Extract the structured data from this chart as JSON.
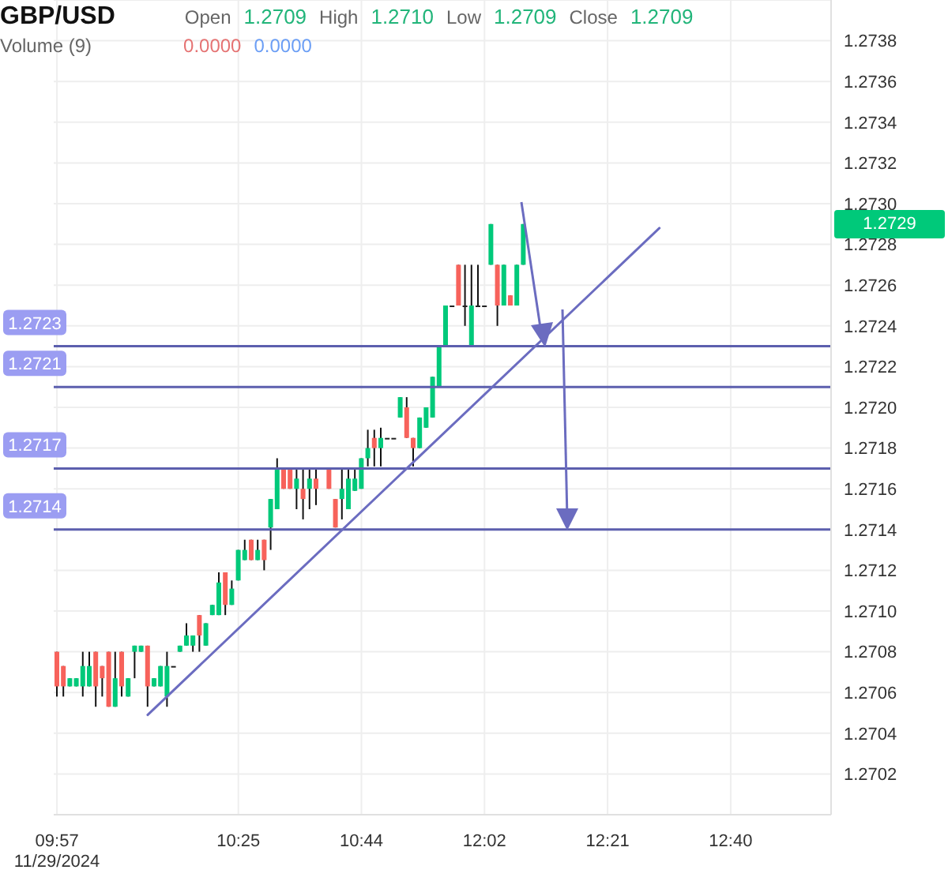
{
  "chart_data": {
    "type": "candlestick",
    "title": "GBP/USD",
    "annotations": [
      "Open",
      "1.2709",
      "High",
      "1.2710",
      "Low",
      "1.2709",
      "Close",
      "1.2709",
      "Volume (9)",
      "0.0000",
      "0.0000",
      "1.2729"
    ],
    "categories": [
      "09:57\n11/29/2024",
      null,
      null,
      null,
      null,
      null,
      null,
      null,
      null,
      null,
      null,
      null,
      null,
      null,
      null,
      null,
      null,
      null,
      null,
      null,
      null,
      null,
      null,
      null,
      null,
      null,
      null,
      null,
      "10:25",
      null,
      null,
      null,
      null,
      null,
      null,
      null,
      null,
      null,
      null,
      null,
      null,
      null,
      null,
      null,
      null,
      null,
      null,
      "10:44",
      null,
      null,
      null,
      null,
      null,
      null,
      null,
      null,
      null,
      null,
      null,
      null,
      null,
      null,
      null,
      null,
      null,
      null,
      "12:02",
      null,
      null,
      null,
      null,
      null,
      null,
      null,
      null,
      null,
      null,
      null,
      null,
      null,
      null,
      null,
      null,
      null,
      null,
      "12:21",
      null,
      null,
      null,
      null,
      null,
      null,
      null,
      null,
      null,
      null,
      null,
      null,
      null,
      null,
      null,
      null,
      null,
      null,
      "12:40",
      null,
      null,
      null,
      null,
      null,
      null,
      null,
      null,
      null,
      null,
      null,
      null,
      null,
      null,
      null
    ],
    "ohlc": [
      [
        1.2708,
        1.2708,
        1.27058,
        1.27063
      ],
      [
        1.27073,
        1.27073,
        1.27058,
        1.27063
      ],
      [
        1.27063,
        1.27067,
        1.27063,
        1.27067
      ],
      [
        1.27063,
        1.27067,
        1.27063,
        1.27067
      ],
      [
        1.27063,
        1.2708,
        1.27058,
        1.27073
      ],
      [
        1.27063,
        1.2708,
        1.27063,
        1.27073
      ],
      [
        1.2708,
        1.2708,
        1.27053,
        1.27063
      ],
      [
        1.27073,
        1.27073,
        1.27058,
        1.27067
      ],
      [
        1.2708,
        1.2708,
        1.27053,
        1.27053
      ],
      [
        1.27053,
        1.2708,
        1.27053,
        1.27067
      ],
      [
        1.2708,
        1.2708,
        1.27058,
        1.27063
      ],
      [
        1.27058,
        1.27067,
        1.27058,
        1.27067
      ],
      [
        1.2708,
        1.27083,
        1.27067,
        1.27083
      ],
      [
        1.2708,
        1.27083,
        1.2708,
        1.27083
      ],
      [
        1.27083,
        1.27083,
        1.27053,
        1.27063
      ],
      [
        1.27063,
        1.27067,
        1.27063,
        1.27067
      ],
      [
        1.27063,
        1.27073,
        1.27063,
        1.27073
      ],
      [
        1.27058,
        1.2708,
        1.27053,
        1.27073
      ],
      [
        1.27073,
        1.27073,
        1.27073,
        1.27073
      ],
      [
        1.2708,
        1.27083,
        1.2708,
        1.27083
      ],
      [
        1.27083,
        1.27094,
        1.27083,
        1.27088
      ],
      [
        1.27083,
        1.27088,
        1.2708,
        1.27088
      ],
      [
        1.27098,
        1.27098,
        1.2708,
        1.27088
      ],
      [
        1.27083,
        1.27094,
        1.27083,
        1.27094
      ],
      [
        1.27098,
        1.27103,
        1.27098,
        1.27103
      ],
      [
        1.27098,
        1.27119,
        1.27098,
        1.27114
      ],
      [
        1.27119,
        1.27119,
        1.27098,
        1.27103
      ],
      [
        1.27103,
        1.27115,
        1.27103,
        1.27111
      ],
      [
        1.27115,
        1.2713,
        1.27115,
        1.2713
      ],
      [
        1.27125,
        1.27135,
        1.27125,
        1.2713
      ],
      [
        1.27135,
        1.27135,
        1.27125,
        1.27125
      ],
      [
        1.27125,
        1.27135,
        1.27125,
        1.2713
      ],
      [
        1.27135,
        1.27135,
        1.2712,
        1.27125
      ],
      [
        1.27141,
        1.27155,
        1.2713,
        1.27155
      ],
      [
        1.2715,
        1.27175,
        1.2715,
        1.2717
      ],
      [
        1.2717,
        1.2717,
        1.2716,
        1.2716
      ],
      [
        1.2717,
        1.2717,
        1.2716,
        1.2716
      ],
      [
        1.2716,
        1.2717,
        1.2715,
        1.27165
      ],
      [
        1.2716,
        1.2717,
        1.27145,
        1.27155
      ],
      [
        1.2716,
        1.2717,
        1.2715,
        1.27165
      ],
      [
        1.27165,
        1.2717,
        1.27152,
        1.2716
      ],
      null,
      [
        1.2717,
        1.2717,
        1.2716,
        1.2716
      ],
      [
        1.27155,
        1.27155,
        1.27141,
        1.27141
      ],
      [
        1.27155,
        1.2717,
        1.27145,
        1.2716
      ],
      [
        1.2715,
        1.2717,
        1.2715,
        1.27165
      ],
      [
        1.27159,
        1.2717,
        1.27159,
        1.27165
      ],
      [
        1.2716,
        1.27175,
        1.2716,
        1.27175
      ],
      [
        1.27175,
        1.27189,
        1.27171,
        1.2718
      ],
      [
        1.27185,
        1.27189,
        1.27171,
        1.2718
      ],
      [
        1.2718,
        1.2719,
        1.27171,
        1.27185
      ],
      [
        1.27185,
        1.27185,
        1.27185,
        1.27185
      ],
      [
        1.27185,
        1.27185,
        1.27185,
        1.27185
      ],
      [
        1.27195,
        1.27205,
        1.27195,
        1.27205
      ],
      [
        1.272,
        1.27205,
        1.27185,
        1.27185
      ],
      [
        1.27185,
        1.27185,
        1.27171,
        1.2718
      ],
      [
        1.2718,
        1.27195,
        1.2718,
        1.27195
      ],
      [
        1.2719,
        1.272,
        1.2719,
        1.272
      ],
      [
        1.27195,
        1.27215,
        1.27195,
        1.27215
      ],
      [
        1.2721,
        1.2723,
        1.2721,
        1.2723
      ],
      [
        1.2723,
        1.2725,
        1.2723,
        1.2725
      ],
      [
        1.2725,
        1.2725,
        1.2725,
        1.2725
      ],
      [
        1.2727,
        1.2727,
        1.2725,
        1.2725
      ],
      [
        1.2725,
        1.2727,
        1.2724,
        1.2725
      ],
      [
        1.2723,
        1.2727,
        1.2723,
        1.2725
      ],
      [
        1.2725,
        1.2727,
        1.2725,
        1.2725
      ],
      [
        1.2725,
        1.2725,
        1.2725,
        1.2725
      ],
      [
        1.2727,
        1.2729,
        1.2727,
        1.2729
      ],
      [
        1.2727,
        1.2727,
        1.2724,
        1.2725
      ],
      [
        1.2725,
        1.2727,
        1.2725,
        1.2727
      ],
      [
        1.27255,
        1.27255,
        1.2725,
        1.2725
      ],
      [
        1.2725,
        1.2727,
        1.2725,
        1.2727
      ],
      [
        1.2727,
        1.2729,
        1.2727,
        1.2729
      ],
      null,
      null,
      null,
      null,
      null,
      null,
      null,
      null,
      null,
      null,
      null,
      null,
      null,
      null,
      null,
      null,
      null,
      null,
      null,
      null,
      null,
      null,
      null,
      null,
      null,
      null,
      null,
      null,
      null,
      null,
      null,
      null,
      null,
      null,
      null,
      null,
      null,
      null,
      null,
      null,
      null,
      null,
      null,
      null,
      null,
      null,
      null
    ],
    "colors": [
      "#f7625b",
      "#f7625b",
      "#00c97a",
      "#00c97a",
      "#00c97a",
      "#00c97a",
      "#f7625b",
      "#f7625b",
      "#f7625b",
      "#00c97a",
      "#f7625b",
      "#00c97a",
      "#00c97a",
      "#00c97a",
      "#f7625b",
      "#00c97a",
      "#00c97a",
      "#00c97a",
      "#222222",
      "#00c97a",
      "#00c97a",
      "#00c97a",
      "#f7625b",
      "#00c97a",
      "#00c97a",
      "#00c97a",
      "#f7625b",
      "#00c97a",
      "#00c97a",
      "#00c97a",
      "#f7625b",
      "#00c97a",
      "#f7625b",
      "#00c97a",
      "#00c97a",
      "#f7625b",
      "#f7625b",
      "#00c97a",
      "#f7625b",
      "#00c97a",
      "#f7625b",
      null,
      "#f7625b",
      "#f7625b",
      "#00c97a",
      "#00c97a",
      "#00c97a",
      "#00c97a",
      "#00c97a",
      "#f7625b",
      "#00c97a",
      "#222222",
      "#222222",
      "#00c97a",
      "#f7625b",
      "#f7625b",
      "#00c97a",
      "#00c97a",
      "#00c97a",
      "#00c97a",
      "#00c97a",
      "#222222",
      "#f7625b",
      "#222222",
      "#00c97a",
      "#222222",
      "#222222",
      "#00c97a",
      "#f7625b",
      "#00c97a",
      "#f7625b",
      "#00c97a",
      "#00c97a",
      null,
      null,
      null,
      null,
      null,
      null,
      null,
      null,
      null,
      null,
      null,
      null,
      null,
      null,
      null,
      null,
      null,
      null,
      null,
      null,
      null,
      null,
      null,
      null,
      null,
      null,
      null,
      null,
      null,
      null,
      null,
      null,
      null,
      null,
      null,
      null,
      null,
      null,
      null,
      null,
      null,
      null,
      null,
      null,
      null,
      null,
      null
    ],
    "series": [
      {
        "type": "line",
        "color": "#6b6cc0",
        "values": [
          null,
          null,
          null,
          null,
          null,
          null,
          null,
          null,
          null,
          null,
          null,
          null,
          null,
          null,
          1.27049,
          null,
          null,
          null,
          null,
          null,
          null,
          null,
          null,
          null,
          null,
          null,
          null,
          null,
          null,
          null,
          null,
          null,
          null,
          null,
          null,
          null,
          null,
          null,
          null,
          null,
          null,
          null,
          null,
          null,
          null,
          null,
          null,
          null,
          null,
          null,
          null,
          null,
          null,
          null,
          null,
          null,
          null,
          null,
          null,
          null,
          null,
          null,
          null,
          null,
          null,
          null,
          null,
          null,
          null,
          null,
          null,
          null,
          null,
          null,
          null,
          null,
          null,
          null,
          null,
          null,
          null,
          null,
          null,
          null,
          null,
          null,
          null,
          null,
          null,
          null,
          null,
          null,
          null,
          1.27288,
          null,
          null,
          null,
          null,
          null,
          null,
          null,
          null,
          null,
          null,
          null,
          null,
          null,
          null,
          null,
          null,
          null,
          null,
          null,
          null,
          null,
          null,
          null,
          null,
          null,
          null
        ]
      }
    ],
    "ref_lines": [
      {
        "axis": "y",
        "value": 1.2723,
        "label": "1.2723",
        "color": "#5c5fae"
      },
      {
        "axis": "y",
        "value": 1.2721,
        "label": "1.2721",
        "color": "#5c5fae"
      },
      {
        "axis": "y",
        "value": 1.2717,
        "label": "1.2717",
        "color": "#5c5fae"
      },
      {
        "axis": "y",
        "value": 1.2714,
        "label": "1.2714",
        "color": "#5c5fae"
      }
    ],
    "ylim": [
      1.27,
      1.274
    ],
    "yticks": [
      1.2702,
      1.2704,
      1.2706,
      1.2708,
      {
        "value": 1.271,
        "label": "1.2710"
      },
      1.2712,
      1.2714,
      1.2716,
      1.2718,
      {
        "value": 1.272,
        "label": "1.2720"
      },
      1.2722,
      1.2724,
      1.2726,
      1.2728,
      {
        "value": 1.273,
        "label": "1.2730"
      },
      1.2732,
      1.2734,
      1.2736,
      1.2738
    ],
    "grid": true
  }
}
